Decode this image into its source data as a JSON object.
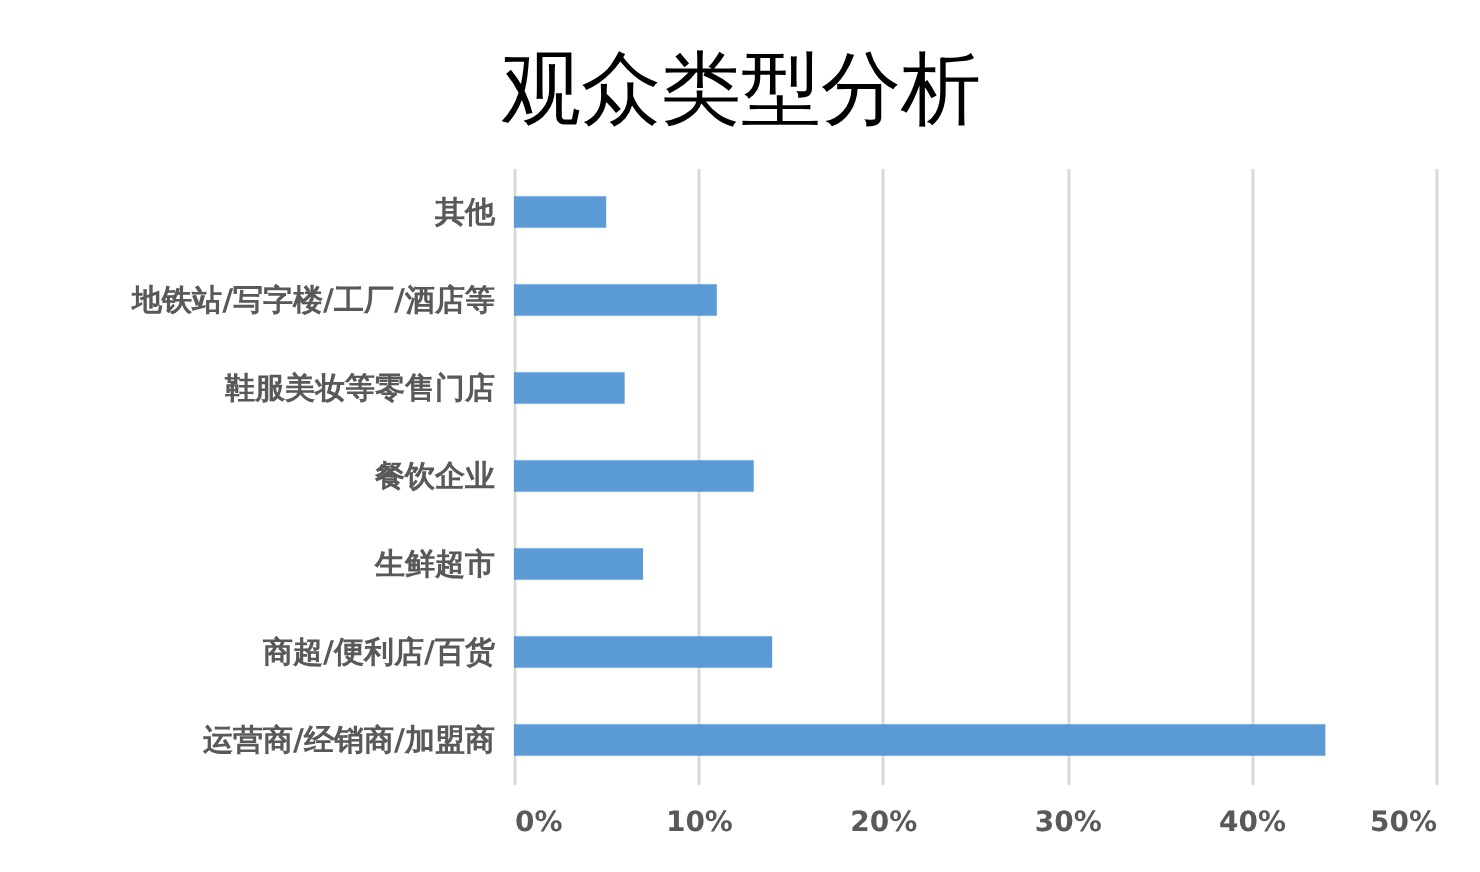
{
  "chart_data": {
    "type": "bar",
    "orientation": "horizontal",
    "title": "观众类型分析",
    "categories": [
      "其他",
      "地铁站/写字楼/工厂/酒店等",
      "鞋服美妆等零售门店",
      "餐饮企业",
      "生鲜超市",
      "商超/便利店/百货",
      "运营商/经销商/加盟商"
    ],
    "values": [
      5,
      11,
      6,
      13,
      7,
      14,
      44
    ],
    "color": "#5b9bd5",
    "xlim": [
      0,
      50
    ],
    "xticks": [
      {
        "value": 0,
        "label": "0%"
      },
      {
        "value": 10,
        "label": "10%"
      },
      {
        "value": 20,
        "label": "20%"
      },
      {
        "value": 30,
        "label": "30%"
      },
      {
        "value": 40,
        "label": "40%"
      },
      {
        "value": 50,
        "label": "50%"
      }
    ],
    "grid": "x"
  }
}
